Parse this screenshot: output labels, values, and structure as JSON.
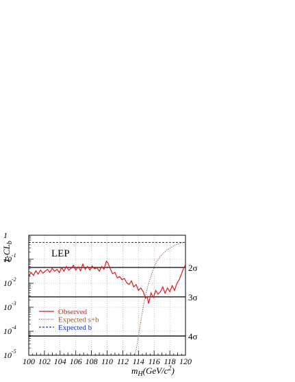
{
  "chart_data": {
    "type": "line",
    "tag": "LEP",
    "xlabel": {
      "main": "m",
      "sub": "H",
      "unit_pre": "(GeV/c",
      "unit_sup": "2",
      "unit_post": ")"
    },
    "ylabel": {
      "main": "1-CL",
      "sub": "b"
    },
    "xlim": [
      100,
      120
    ],
    "ylim_log10": [
      -5,
      0
    ],
    "y_log_scale": true,
    "grid": true,
    "x_ticks": [
      "100",
      "102",
      "104",
      "106",
      "108",
      "110",
      "112",
      "114",
      "116",
      "118",
      "120"
    ],
    "y_ticks": [
      {
        "base": "1",
        "exp": ""
      },
      {
        "base": "10",
        "exp": "-1"
      },
      {
        "base": "10",
        "exp": "-2"
      },
      {
        "base": "10",
        "exp": "-3"
      },
      {
        "base": "10",
        "exp": "-4"
      },
      {
        "base": "10",
        "exp": "-5"
      }
    ],
    "sigma_lines": [
      {
        "label": "2σ",
        "value": 0.0455
      },
      {
        "label": "3σ",
        "value": 0.0027
      },
      {
        "label": "4σ",
        "value": 6.33e-05
      }
    ],
    "legend_position": "lower-left",
    "series": [
      {
        "name": "Observed",
        "color": "#e8141b",
        "style": "solid",
        "x": [
          100,
          100.3,
          100.6,
          100.9,
          101.2,
          101.5,
          101.8,
          102.1,
          102.4,
          102.7,
          103,
          103.3,
          103.6,
          103.9,
          104.2,
          104.5,
          104.8,
          105.1,
          105.4,
          105.7,
          106,
          106.3,
          106.6,
          106.9,
          107.2,
          107.5,
          107.8,
          108.1,
          108.4,
          108.7,
          109,
          109.3,
          109.6,
          109.9,
          110.1,
          110.4,
          110.7,
          111,
          111.3,
          111.6,
          111.9,
          112.2,
          112.5,
          112.8,
          113.1,
          113.4,
          113.7,
          114,
          114.3,
          114.6,
          114.9,
          115.1,
          115.3,
          115.6,
          115.9,
          116.2,
          116.5,
          116.8,
          117.1,
          117.4,
          117.7,
          118,
          118.3,
          118.6,
          118.9,
          119.2,
          119.5,
          119.8,
          120
        ],
        "y_log10": [
          -1.7,
          -1.55,
          -1.68,
          -1.48,
          -1.62,
          -1.45,
          -1.58,
          -1.5,
          -1.42,
          -1.55,
          -1.38,
          -1.5,
          -1.42,
          -1.55,
          -1.35,
          -1.5,
          -1.3,
          -1.45,
          -1.38,
          -1.25,
          -1.45,
          -1.32,
          -1.48,
          -1.2,
          -1.42,
          -1.3,
          -1.45,
          -1.28,
          -1.4,
          -1.35,
          -1.5,
          -1.3,
          -1.42,
          -1.08,
          -1.15,
          -1.4,
          -1.6,
          -1.55,
          -1.78,
          -1.72,
          -1.85,
          -1.8,
          -1.98,
          -2.05,
          -1.9,
          -2.15,
          -2.05,
          -2.3,
          -2.2,
          -2.35,
          -2.62,
          -2.55,
          -2.85,
          -2.4,
          -2.6,
          -2.3,
          -2.45,
          -2.35,
          -2.15,
          -2.42,
          -2.2,
          -2.35,
          -2.1,
          -2.3,
          -2.0,
          -1.85,
          -1.6,
          -1.35,
          -1.25
        ]
      },
      {
        "name": "Expected s+b",
        "color": "#9c5a2e",
        "style": "dotted",
        "x": [
          113.55,
          113.8,
          114.05,
          114.3,
          114.55,
          114.8,
          115.05,
          115.3,
          115.55,
          115.8,
          116.1,
          116.4,
          116.7,
          117,
          117.4,
          117.8,
          118.2,
          118.6,
          119.0,
          119.5,
          120
        ],
        "y_log10": [
          -5,
          -4.6,
          -4.1,
          -3.6,
          -3.1,
          -2.65,
          -2.3,
          -2.0,
          -1.75,
          -1.5,
          -1.25,
          -1.07,
          -0.93,
          -0.8,
          -0.68,
          -0.58,
          -0.5,
          -0.43,
          -0.37,
          -0.32,
          -0.28
        ]
      },
      {
        "name": "Expected b",
        "color": "#1530d6",
        "style": "dashed",
        "x": [
          100,
          120
        ],
        "y_log10": [
          -0.3,
          -0.3
        ]
      }
    ]
  }
}
